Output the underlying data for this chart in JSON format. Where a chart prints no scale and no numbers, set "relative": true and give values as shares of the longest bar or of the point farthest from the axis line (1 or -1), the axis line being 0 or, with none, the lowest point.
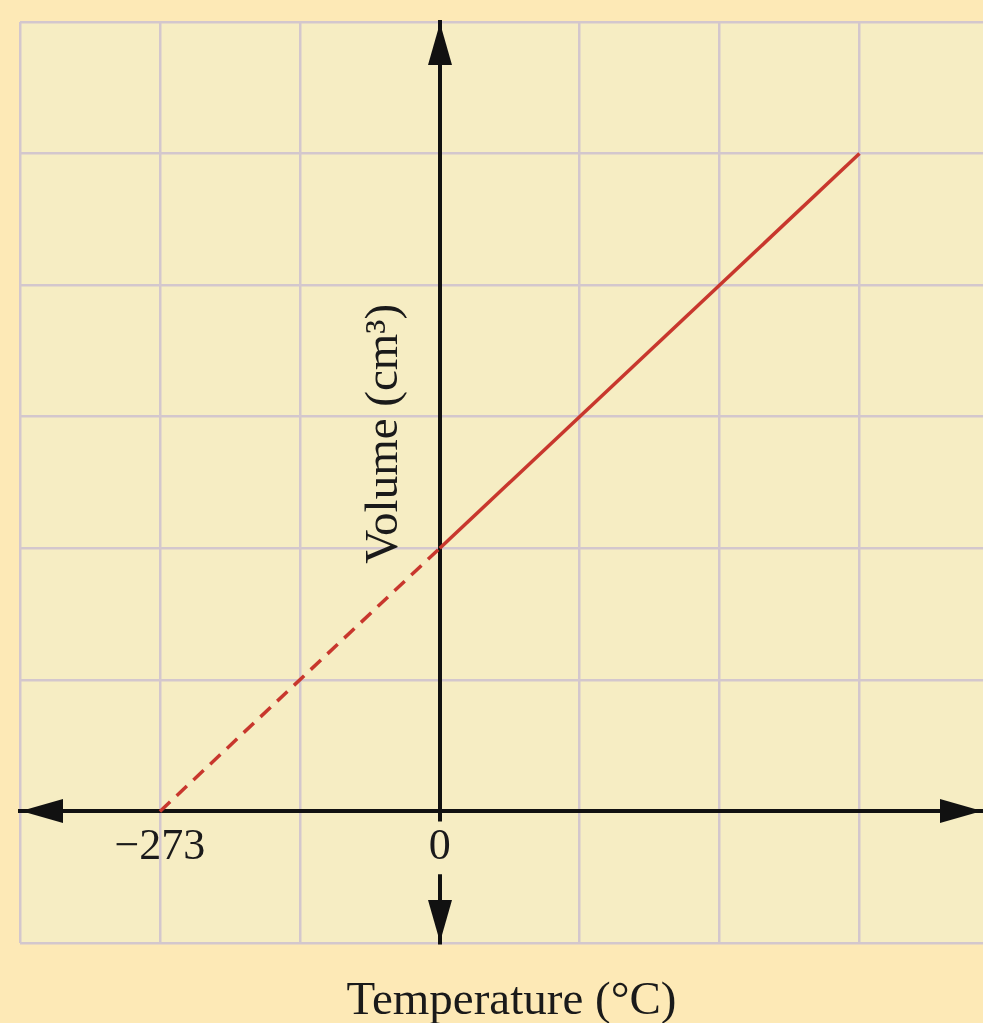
{
  "chart_data": {
    "type": "line",
    "xlabel": "Temperature (°C)",
    "ylabel": "Volume (cm³)",
    "relative": true,
    "xlim": [
      -409.5,
      530
    ],
    "xticks": [
      {
        "value": -409.5,
        "label": null
      },
      {
        "value": -273,
        "label": "−273"
      },
      {
        "value": -136.5,
        "label": null
      },
      0,
      {
        "value": 136.5,
        "label": null
      },
      {
        "value": 273,
        "label": null
      },
      {
        "value": 409.5,
        "label": null
      }
    ],
    "series": [
      {
        "color": "#c8372d",
        "line_style": "dashed",
        "x": [
          -273,
          0
        ],
        "values": [
          0,
          0.4
        ]
      },
      {
        "color": "#c8372d",
        "line_style": "solid",
        "x": [
          0,
          409.5
        ],
        "values": [
          0.4,
          1
        ]
      }
    ],
    "grid": true,
    "legend": false,
    "marker": "none"
  }
}
